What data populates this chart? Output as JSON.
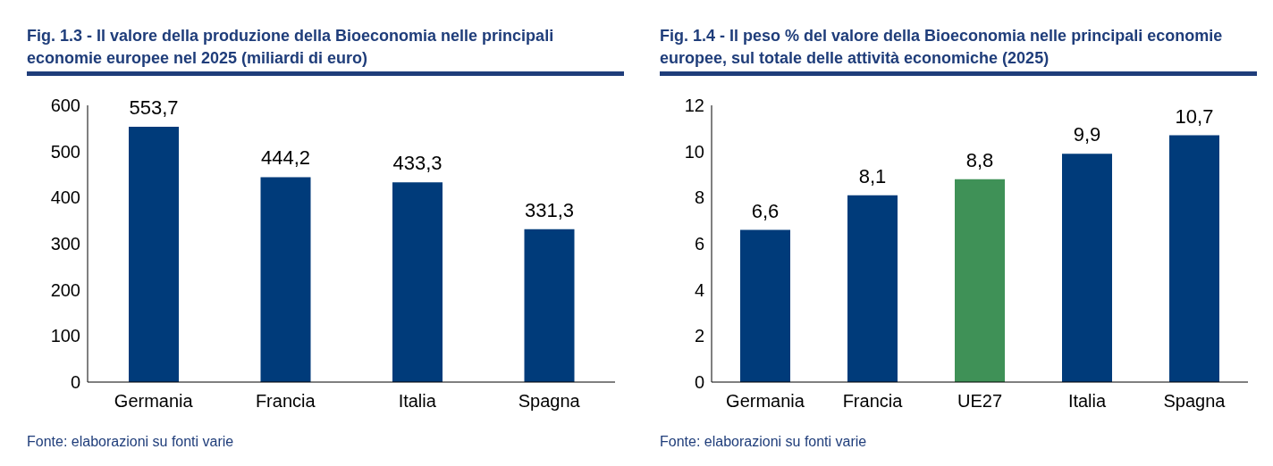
{
  "chart_data": [
    {
      "type": "bar",
      "title": "Fig. 1.3 - Il valore della produzione della Bioeconomia nelle principali economie europee nel 2025 (miliardi di euro)",
      "categories": [
        "Germania",
        "Francia",
        "Italia",
        "Spagna"
      ],
      "values": [
        553.7,
        444.2,
        433.3,
        331.3
      ],
      "value_labels": [
        "553,7",
        "444,2",
        "433,3",
        "331,3"
      ],
      "color": "#003b7a",
      "ylim": [
        0,
        600
      ],
      "yticks": [
        0,
        100,
        200,
        300,
        400,
        500,
        600
      ],
      "grid": false,
      "annotations": [
        "Fonte: elaborazioni su fonti varie"
      ]
    },
    {
      "type": "bar",
      "title": "Fig. 1.4 - Il peso % del valore della Bioeconomia nelle principali economie europee, sul totale delle attività economiche (2025)",
      "categories": [
        "Germania",
        "Francia",
        "UE27",
        "Italia",
        "Spagna"
      ],
      "values": [
        6.6,
        8.1,
        8.8,
        9.9,
        10.7
      ],
      "value_labels": [
        "6,6",
        "8,1",
        "8,8",
        "9,9",
        "10,7"
      ],
      "colors": [
        "#003b7a",
        "#003b7a",
        "#3f9157",
        "#003b7a",
        "#003b7a"
      ],
      "ylim": [
        0,
        12
      ],
      "yticks": [
        0,
        2,
        4,
        6,
        8,
        10,
        12
      ],
      "grid": false,
      "annotations": [
        "Fonte: elaborazioni su fonti varie"
      ]
    }
  ]
}
